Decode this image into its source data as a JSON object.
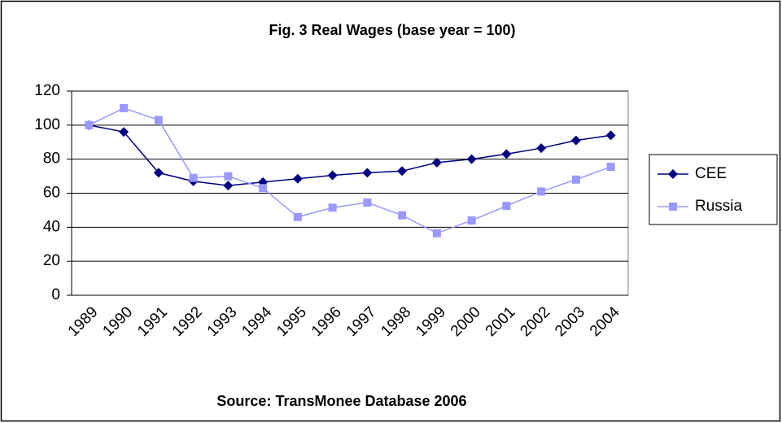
{
  "chart_data": {
    "type": "line",
    "title": "Fig. 3 Real Wages (base year = 100)",
    "source": "Source: TransMonee Database 2006",
    "categories": [
      "1989",
      "1990",
      "1991",
      "1992",
      "1993",
      "1994",
      "1995",
      "1996",
      "1997",
      "1998",
      "1999",
      "2000",
      "2001",
      "2002",
      "2003",
      "2004"
    ],
    "series": [
      {
        "name": "CEE",
        "color": "#000080",
        "marker": "diamond",
        "values": [
          100,
          96,
          72,
          67,
          64.5,
          66.5,
          68.5,
          70.5,
          72,
          73,
          78,
          80,
          83,
          86.5,
          91,
          94
        ]
      },
      {
        "name": "Russia",
        "color": "#9999ff",
        "marker": "square",
        "values": [
          100,
          110,
          103,
          69,
          70,
          63,
          46,
          51.5,
          54.5,
          47,
          36.5,
          44,
          52.5,
          61,
          68,
          75.5
        ]
      }
    ],
    "ylim": [
      0,
      120
    ],
    "yticks": [
      0,
      20,
      40,
      60,
      80,
      100,
      120
    ],
    "grid": true,
    "legend": "right"
  }
}
